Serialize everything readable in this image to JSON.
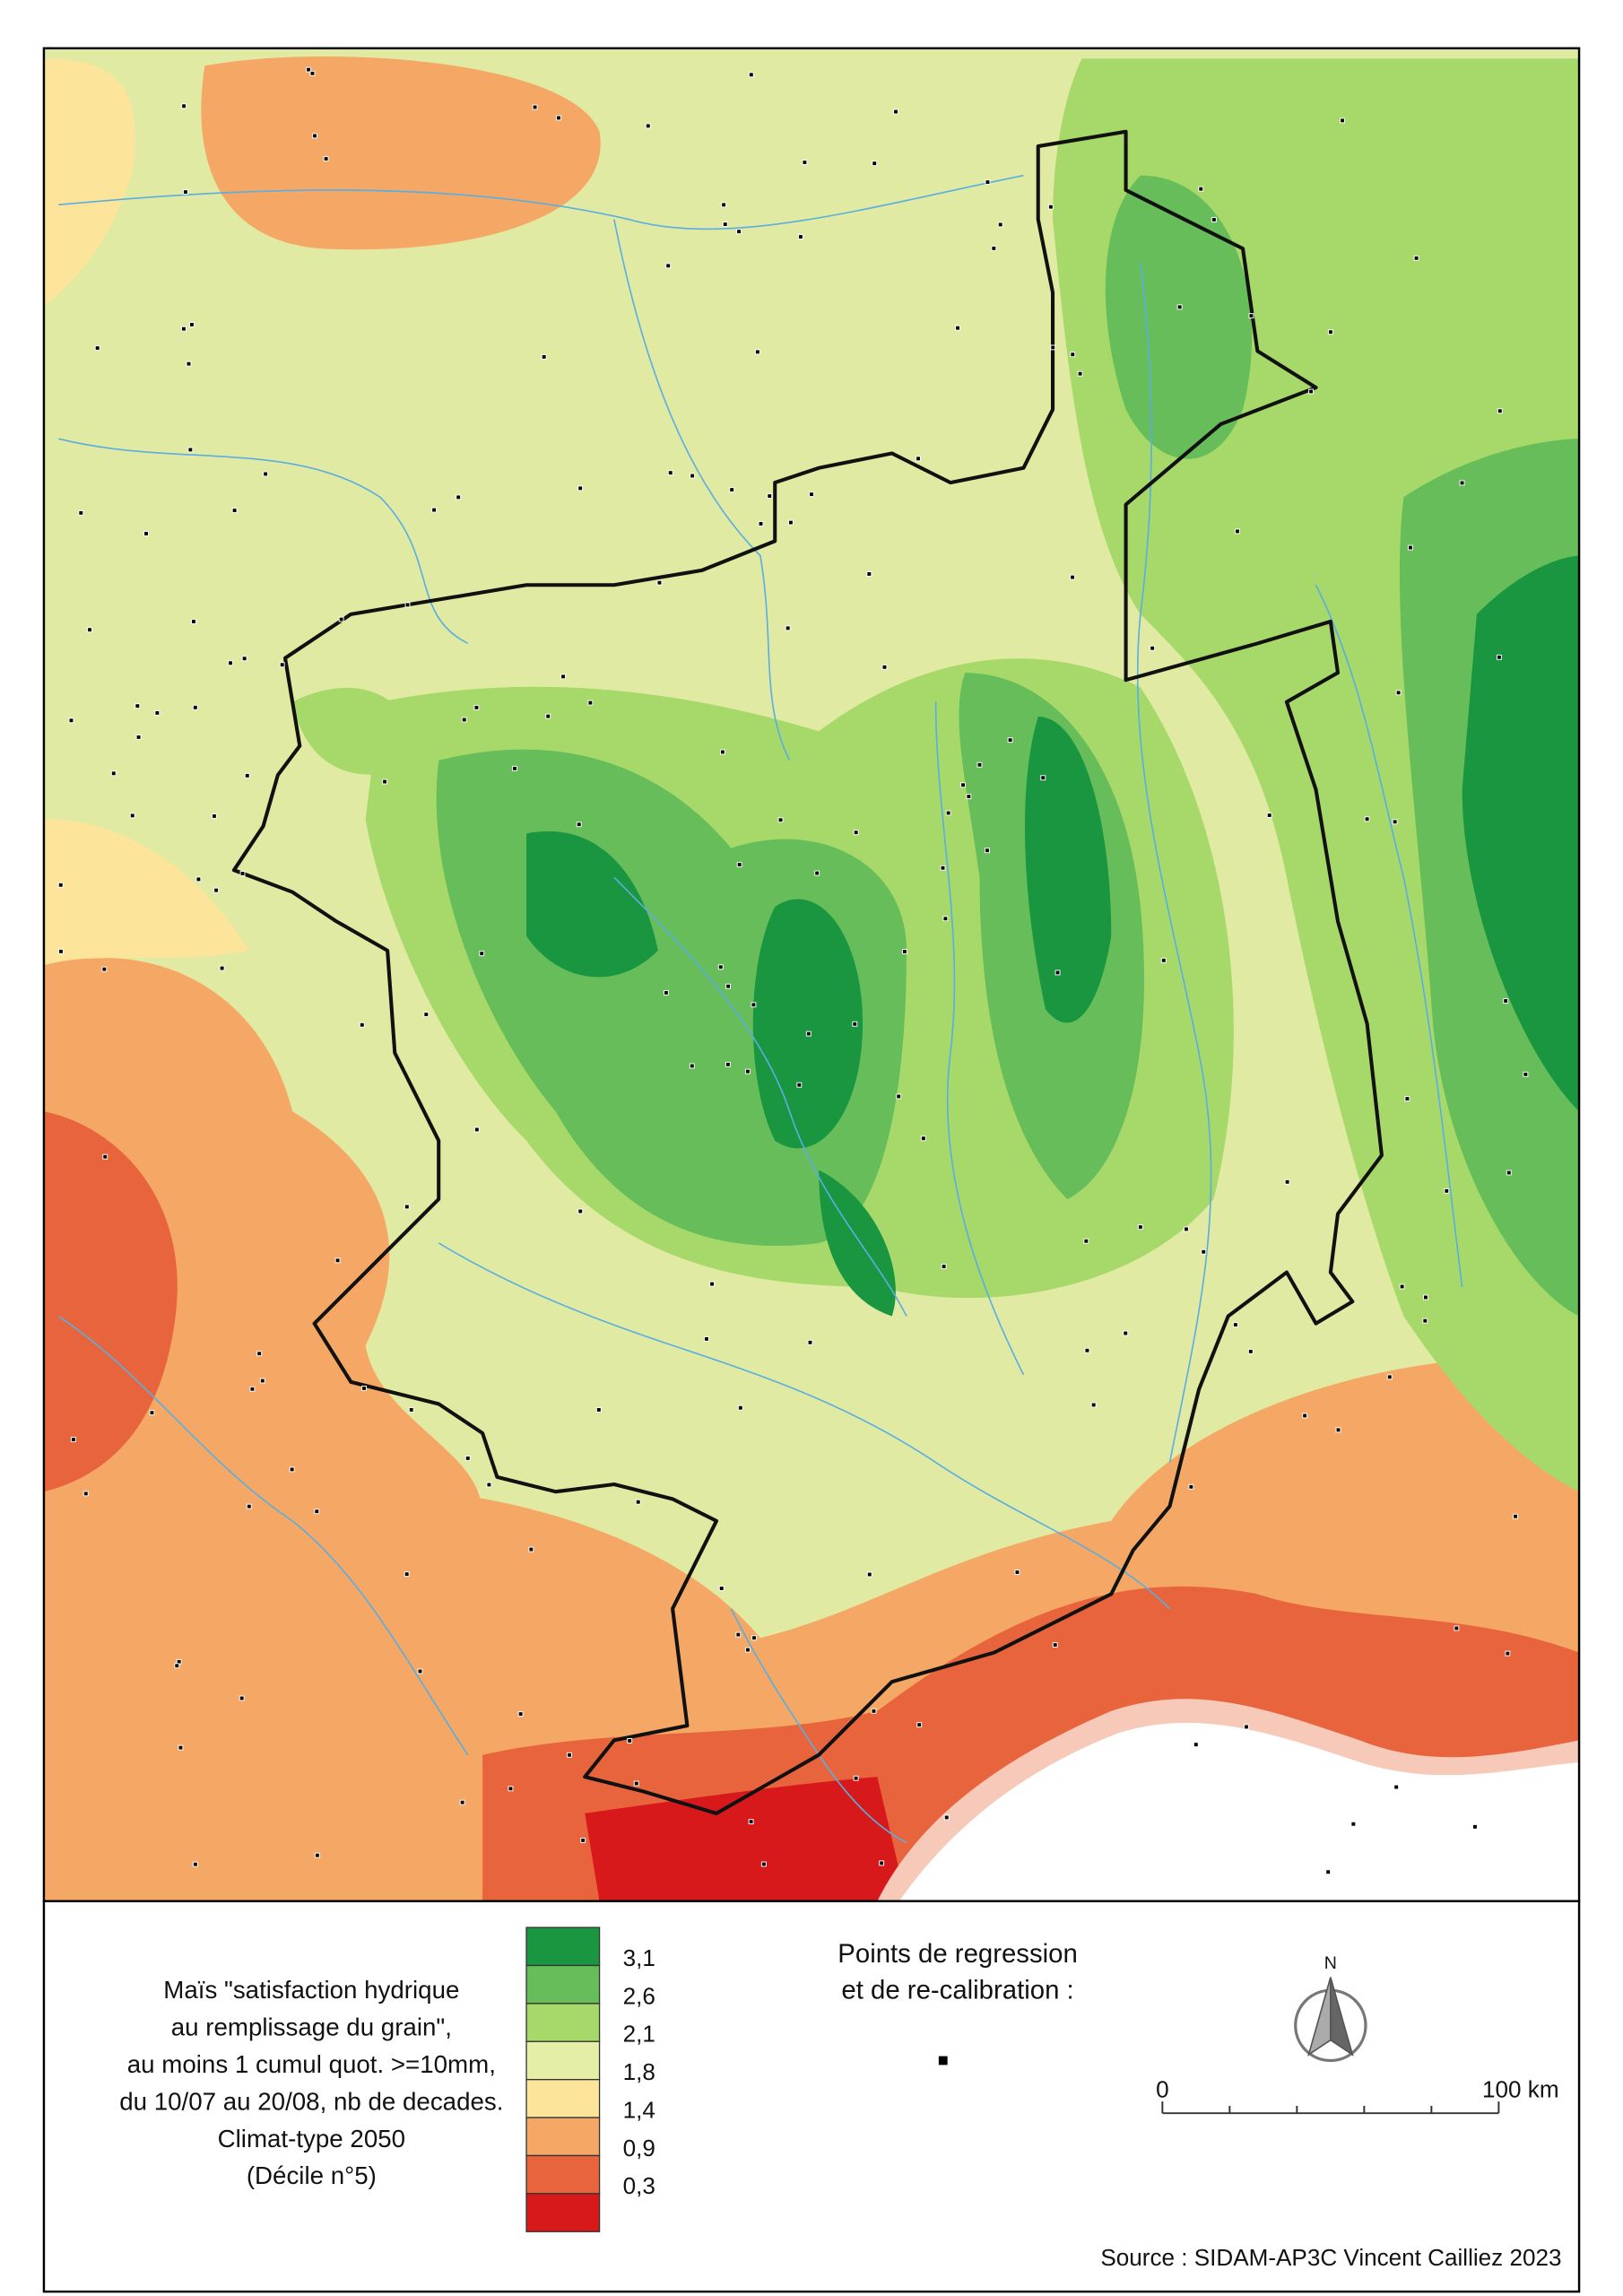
{
  "legend": {
    "title_lines": [
      "Maïs \"satisfaction hydrique",
      "au remplissage du grain\",",
      "au moins 1 cumul quot. >=10mm,",
      "du 10/07 au 20/08, nb de decades.",
      "Climat-type 2050",
      "(Décile n°5)"
    ],
    "colors": [
      "#1a9641",
      "#66bd5a",
      "#a6d96a",
      "#e4eea6",
      "#fce49a",
      "#f5a765",
      "#e8643c",
      "#d7191c"
    ],
    "breaks": [
      "3,1",
      "2,6",
      "2,1",
      "1,8",
      "1,4",
      "0,9",
      "0,3"
    ]
  },
  "points": {
    "title_lines": [
      "Points de regression",
      "et de re-calibration :"
    ]
  },
  "north": "N",
  "scale": {
    "start": "0",
    "end": "100 km"
  },
  "source": "Source : SIDAM-AP3C Vincent Cailliez 2023"
}
